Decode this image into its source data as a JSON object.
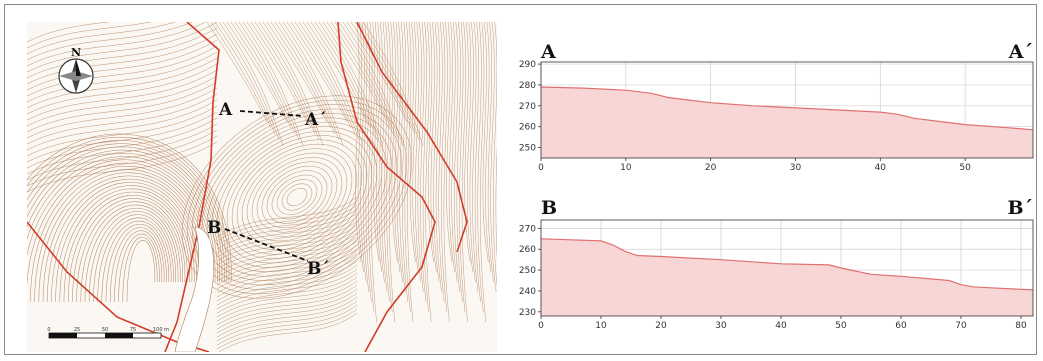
{
  "map": {
    "north_label": "N",
    "section_labels": {
      "a": "A",
      "a_prime": "A´",
      "b": "B",
      "b_prime": "B´"
    },
    "scale_bar": {
      "labels": [
        "0",
        "25",
        "50",
        "75",
        "100 m"
      ]
    },
    "colors": {
      "contour": "#b07d55",
      "boundary": "#d23c2a",
      "section_line": "#111111"
    }
  },
  "chart_data": [
    {
      "type": "area",
      "start_label": "A",
      "end_label": "A´",
      "x": [
        0,
        5,
        10,
        13,
        15,
        17,
        20,
        25,
        30,
        35,
        40,
        42,
        44,
        47,
        50,
        55,
        58
      ],
      "y": [
        279,
        278.5,
        277.5,
        276,
        274,
        273,
        271.5,
        270,
        269,
        268,
        267,
        266,
        264,
        262.5,
        261,
        259.5,
        258.5
      ],
      "xlim": [
        0,
        58
      ],
      "ylim": [
        245,
        291
      ],
      "xticks": [
        0,
        10,
        20,
        30,
        40,
        50
      ],
      "yticks": [
        250,
        260,
        270,
        280,
        290
      ],
      "grid": true,
      "fill_color": "#f8d6d6",
      "line_color": "#e07070"
    },
    {
      "type": "area",
      "start_label": "B",
      "end_label": "B´",
      "x": [
        0,
        5,
        10,
        12,
        14,
        16,
        20,
        30,
        40,
        48,
        50,
        55,
        60,
        68,
        70,
        72,
        75,
        82
      ],
      "y": [
        265,
        264.5,
        264,
        262,
        259,
        257,
        256.5,
        255,
        253,
        252.5,
        251,
        248,
        247,
        245,
        243,
        242,
        241.5,
        240.5
      ],
      "xlim": [
        0,
        82
      ],
      "ylim": [
        228,
        274
      ],
      "xticks": [
        0,
        10,
        20,
        30,
        40,
        50,
        60,
        70,
        80
      ],
      "yticks": [
        230,
        240,
        250,
        260,
        270
      ],
      "grid": true,
      "fill_color": "#f8d6d6",
      "line_color": "#e07070"
    }
  ]
}
